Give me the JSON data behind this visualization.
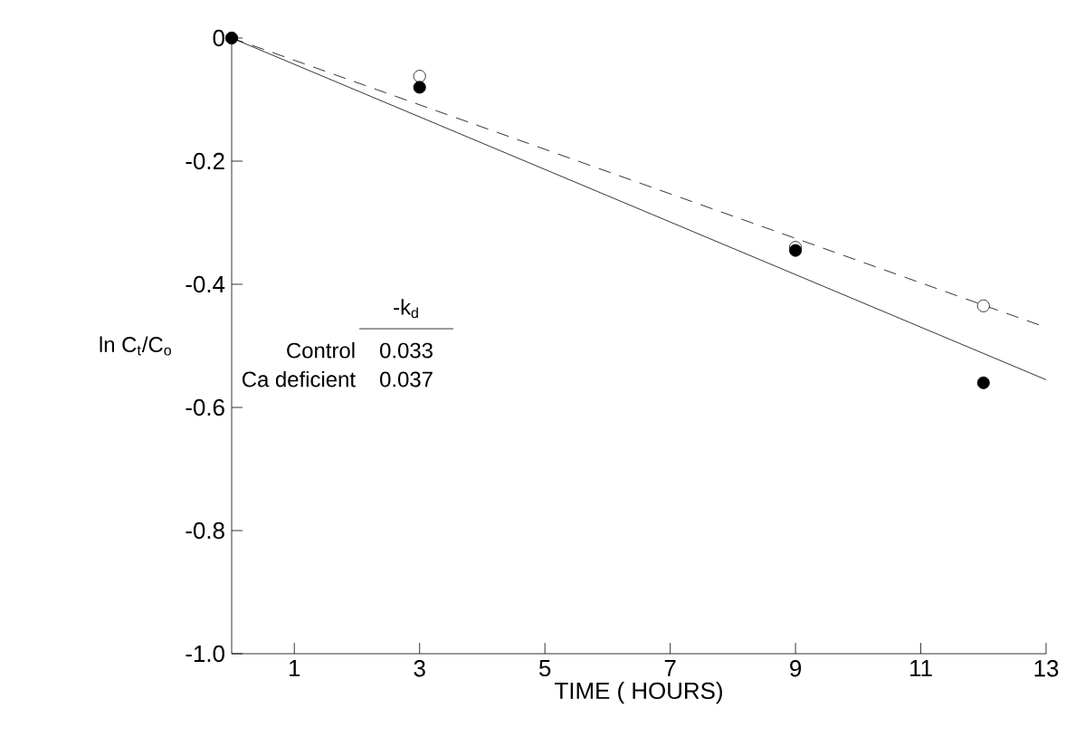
{
  "chart_data": {
    "type": "scatter",
    "xlabel": "TIME ( HOURS)",
    "ylabel": "ln C$_{t}$/C$_{o}$",
    "xlim": [
      0,
      13
    ],
    "ylim": [
      -1.0,
      0
    ],
    "xticks": [
      1,
      3,
      5,
      7,
      9,
      11,
      13
    ],
    "yticks": [
      0,
      {
        "value": -0.2,
        "label": "-0.2"
      },
      {
        "value": -0.4,
        "label": "-0.4"
      },
      {
        "value": -0.6,
        "label": "-0.6"
      },
      {
        "value": -0.8,
        "label": "-0.8"
      },
      {
        "value": -1.0,
        "label": "-1.0"
      }
    ],
    "grid": false,
    "annotations": [
      "-k$_{d}$",
      "Control",
      "0.033",
      "Ca deficient",
      "0.037"
    ],
    "series": [
      {
        "marker": "circle",
        "color": "#ffffff",
        "x": [
          0,
          3,
          9,
          12
        ],
        "values": [
          0,
          -0.062,
          -0.34,
          -0.435
        ]
      },
      {
        "marker": "circle",
        "color": "#000000",
        "x": [
          0,
          3,
          9,
          12
        ],
        "values": [
          0,
          -0.08,
          -0.345,
          -0.56
        ]
      },
      {
        "type": "line",
        "marker": "none",
        "line_style": "dashed",
        "color": "#000000",
        "x": [
          0,
          13
        ],
        "values": [
          0,
          -0.47
        ]
      },
      {
        "type": "line",
        "marker": "none",
        "line_style": "solid",
        "color": "#000000",
        "x": [
          0,
          13
        ],
        "values": [
          0,
          -0.555
        ]
      }
    ]
  }
}
